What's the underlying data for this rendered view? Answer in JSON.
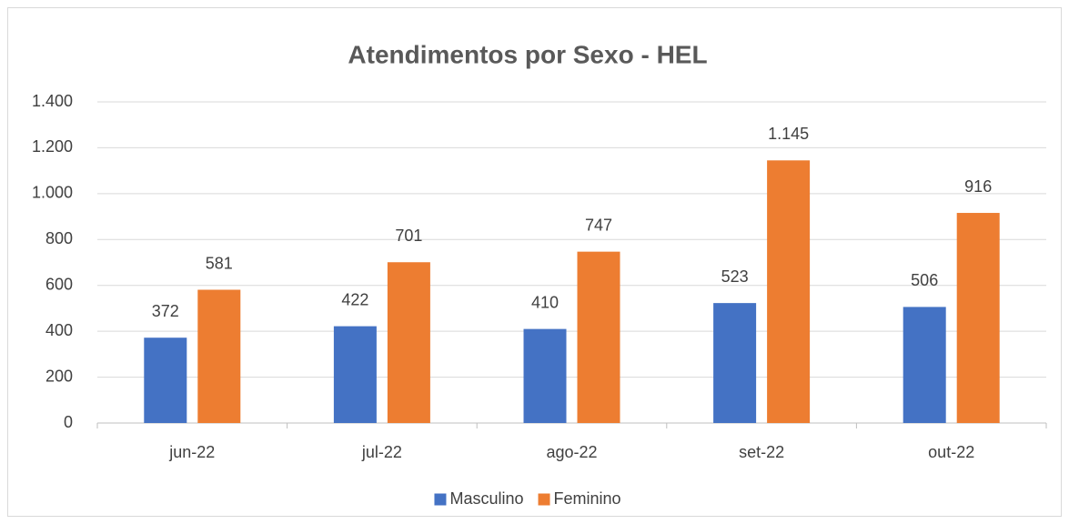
{
  "chart_data": {
    "type": "bar",
    "title": "Atendimentos por Sexo - HEL",
    "categories": [
      "jun-22",
      "jul-22",
      "ago-22",
      "set-22",
      "out-22"
    ],
    "series": [
      {
        "name": "Masculino",
        "color": "#4472c4",
        "values": [
          372,
          422,
          410,
          523,
          506
        ]
      },
      {
        "name": "Feminino",
        "color": "#ed7d31",
        "values": [
          581,
          701,
          747,
          1145,
          916
        ],
        "value_labels": [
          "581",
          "701",
          "747",
          "1.145",
          "916"
        ]
      }
    ],
    "ylim": [
      0,
      1400
    ],
    "yticks": [
      0,
      200,
      400,
      600,
      800,
      {
        "value": 1000,
        "label": "1.000"
      },
      {
        "value": 1200,
        "label": "1.200"
      },
      {
        "value": 1400,
        "label": "1.400"
      }
    ],
    "grid": true,
    "legend": "bottom"
  }
}
